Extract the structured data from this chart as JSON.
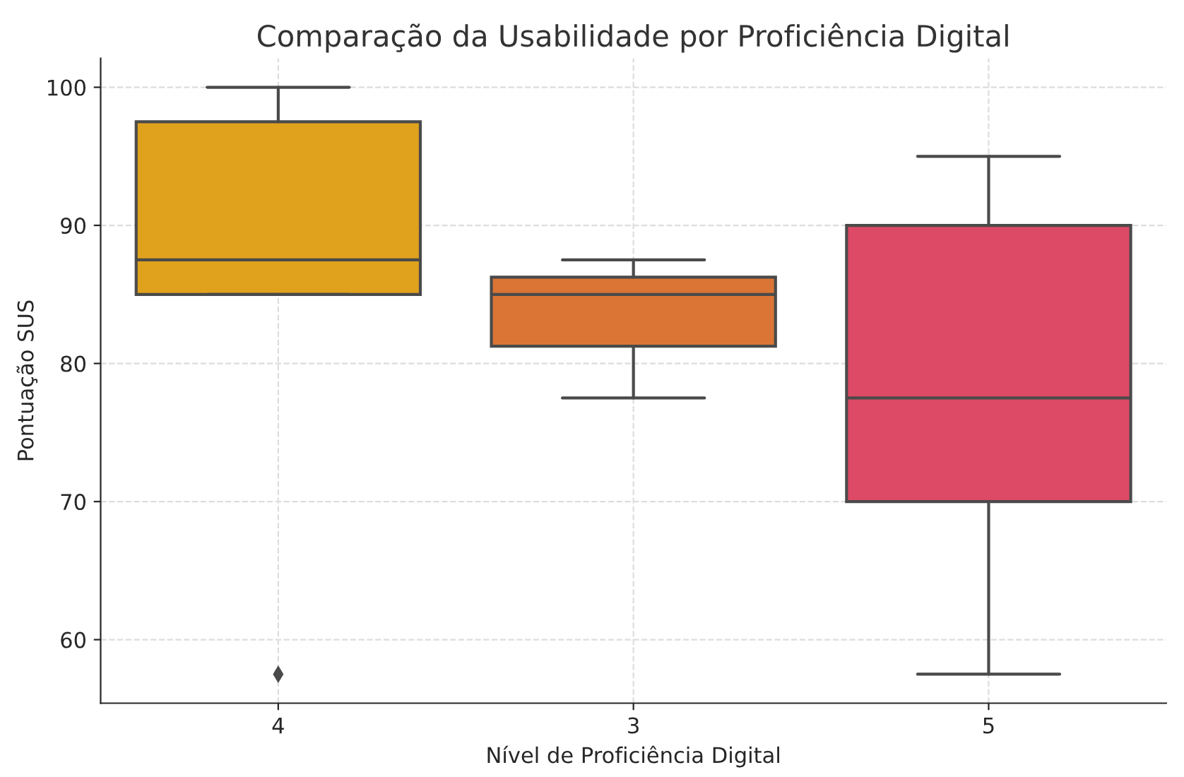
{
  "chart_data": {
    "type": "box",
    "title": "Comparação da Usabilidade por Proficiência Digital",
    "xlabel": "Nível de Proficiência Digital",
    "ylabel": "Pontuação SUS",
    "categories": [
      "4",
      "3",
      "5"
    ],
    "colors": [
      "#e0a21d",
      "#da7535",
      "#dd4a66"
    ],
    "boxes": [
      {
        "low": 85,
        "q1": 85,
        "median": 87.5,
        "q3": 97.5,
        "high": 100,
        "outliers": [
          57.5
        ]
      },
      {
        "low": 77.5,
        "q1": 81.25,
        "median": 85,
        "q3": 86.25,
        "high": 87.5
      },
      {
        "low": 57.5,
        "q1": 70,
        "median": 77.5,
        "q3": 90,
        "high": 95
      }
    ],
    "ylim": [
      55.4,
      102.1
    ],
    "yticks": [
      60,
      70,
      80,
      90,
      100
    ],
    "grid": true
  }
}
